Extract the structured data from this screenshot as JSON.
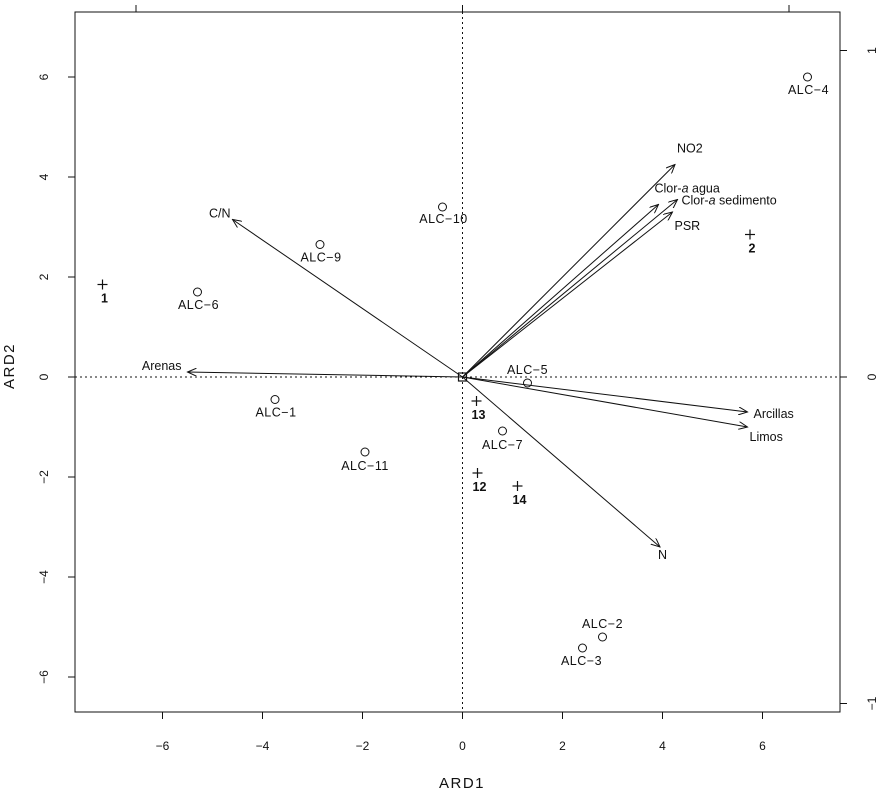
{
  "chart_data": {
    "type": "scatter",
    "title": "",
    "xlabel": "ARD1",
    "ylabel": "ARD2",
    "xlim": [
      -7.75,
      7.55
    ],
    "ylim": [
      -6.7,
      7.3
    ],
    "x_ticks": [
      {
        "value": -6,
        "label": "−6"
      },
      {
        "value": -4,
        "label": "−4"
      },
      {
        "value": -2,
        "label": "−2"
      },
      {
        "value": 0,
        "label": "0"
      },
      {
        "value": 2,
        "label": "2"
      },
      {
        "value": 4,
        "label": "4"
      },
      {
        "value": 6,
        "label": "6"
      }
    ],
    "y_ticks": [
      {
        "value": -6,
        "label": "−6"
      },
      {
        "value": -4,
        "label": "−4"
      },
      {
        "value": -2,
        "label": "−2"
      },
      {
        "value": 0,
        "label": "0"
      },
      {
        "value": 2,
        "label": "2"
      },
      {
        "value": 4,
        "label": "4"
      },
      {
        "value": 6,
        "label": "6"
      }
    ],
    "secondary_y_ticks": [
      {
        "value": 1,
        "label": "1"
      },
      {
        "value": 0,
        "label": "0"
      },
      {
        "value": -1,
        "label": "−1"
      }
    ],
    "secondary_y_scale": 6.53,
    "reference_lines": {
      "x": 0,
      "y": 0,
      "style": "dotted"
    },
    "sites": [
      {
        "label": "ALC−4",
        "x": 6.9,
        "y": 6.0
      },
      {
        "label": "ALC−10",
        "x": -0.4,
        "y": 3.4
      },
      {
        "label": "ALC−9",
        "x": -2.85,
        "y": 2.65
      },
      {
        "label": "ALC−6",
        "x": -5.3,
        "y": 1.7
      },
      {
        "label": "ALC−5",
        "x": 1.3,
        "y": -0.12
      },
      {
        "label": "ALC−1",
        "x": -3.75,
        "y": -0.45
      },
      {
        "label": "ALC−7",
        "x": 0.8,
        "y": -1.08
      },
      {
        "label": "ALC−11",
        "x": -1.95,
        "y": -1.5
      },
      {
        "label": "ALC−2",
        "x": 2.8,
        "y": -5.2
      },
      {
        "label": "ALC−3",
        "x": 2.4,
        "y": -5.42
      }
    ],
    "objects": [
      {
        "label": "1",
        "x": -7.2,
        "y": 1.85
      },
      {
        "label": "2",
        "x": 5.75,
        "y": 2.85
      },
      {
        "label": "13",
        "x": 0.28,
        "y": -0.48
      },
      {
        "label": "12",
        "x": 0.3,
        "y": -1.92
      },
      {
        "label": "14",
        "x": 1.1,
        "y": -2.18
      }
    ],
    "arrows": [
      {
        "label": "NO2",
        "x": 4.25,
        "y": 4.25
      },
      {
        "label": "Clor-a agua",
        "x": 3.92,
        "y": 3.45
      },
      {
        "label": "Clor-a sedimento",
        "x": 4.3,
        "y": 3.55
      },
      {
        "label": "PSR",
        "x": 4.2,
        "y": 3.3
      },
      {
        "label": "C/N",
        "x": -4.6,
        "y": 3.15
      },
      {
        "label": "Arenas",
        "x": -5.5,
        "y": 0.1
      },
      {
        "label": "Arcillas",
        "x": 5.7,
        "y": -0.7
      },
      {
        "label": "Limos",
        "x": 5.7,
        "y": -1.0
      },
      {
        "label": "N",
        "x": 3.95,
        "y": -3.4
      }
    ],
    "grid": false,
    "legend": "none"
  }
}
